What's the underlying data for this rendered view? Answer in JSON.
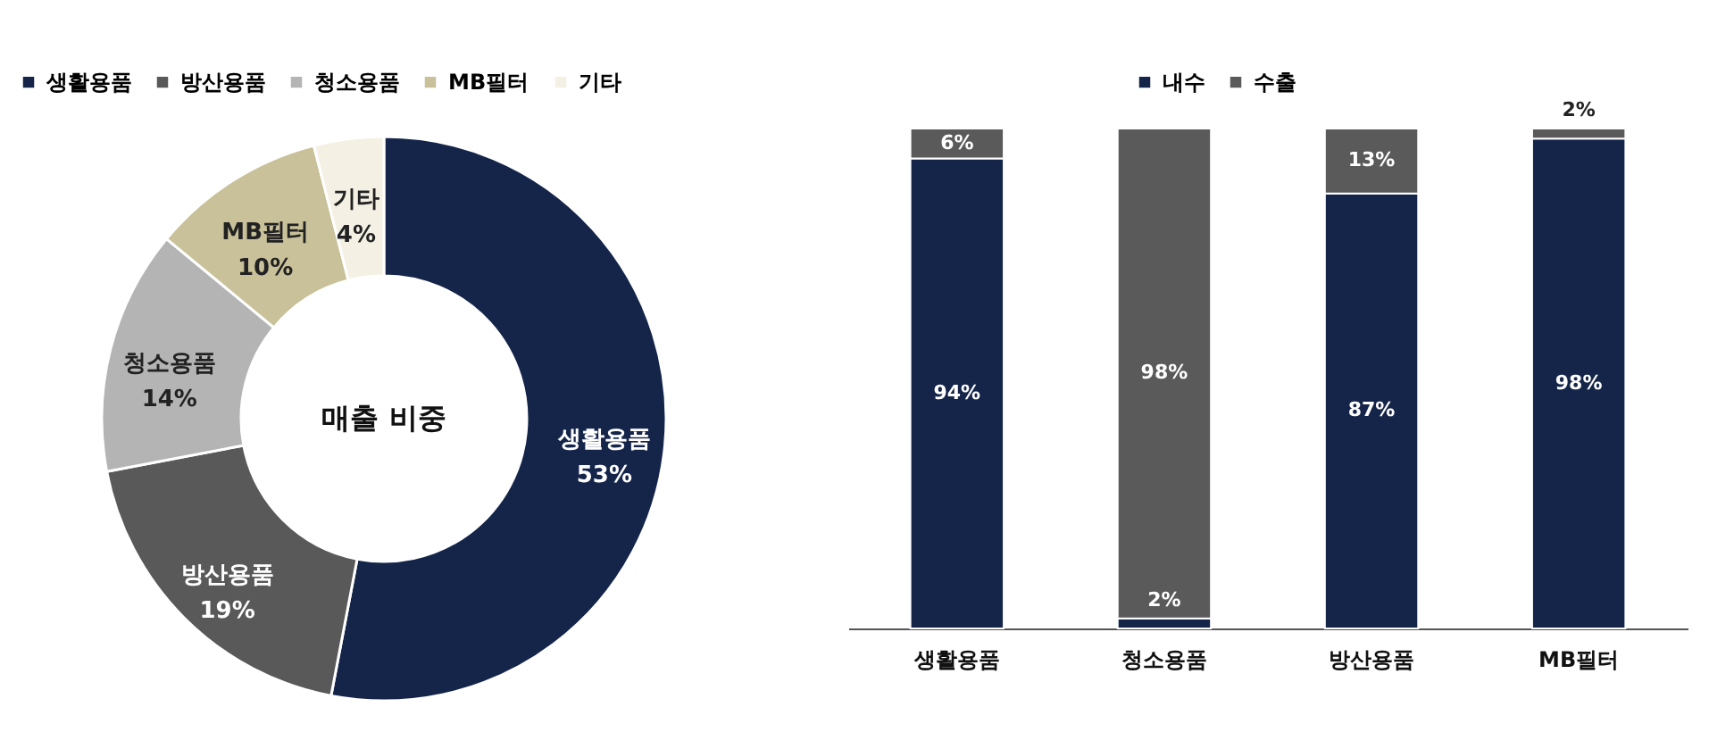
{
  "chart_data": [
    {
      "type": "donut",
      "legend": "top left",
      "annotations": [
        "매출 비중"
      ],
      "categories": [
        "생활용품",
        "방산용품",
        "청소용품",
        "MB필터",
        "기타"
      ],
      "values": [
        53,
        19,
        14,
        10,
        4
      ],
      "value_labels": [
        "53%",
        "19%",
        "14%",
        "10%",
        "4%"
      ],
      "colors": [
        "#15254a",
        "#595959",
        "#b4b4b4",
        "#c8c199",
        "#f4f1e4"
      ]
    },
    {
      "type": "bar",
      "stacked": true,
      "legend": "top",
      "categories": [
        "생활용품",
        "청소용품",
        "방산용품",
        "MB필터"
      ],
      "series": [
        {
          "name": "내수",
          "color": "#15254a",
          "values": [
            94,
            2,
            87,
            98
          ],
          "value_labels": [
            "94%",
            "2%",
            "87%",
            "98%"
          ]
        },
        {
          "name": "수출",
          "color": "#5a5a5a",
          "values": [
            6,
            98,
            13,
            2
          ],
          "value_labels": [
            "6%",
            "98%",
            "13%",
            "2%"
          ]
        }
      ]
    }
  ]
}
